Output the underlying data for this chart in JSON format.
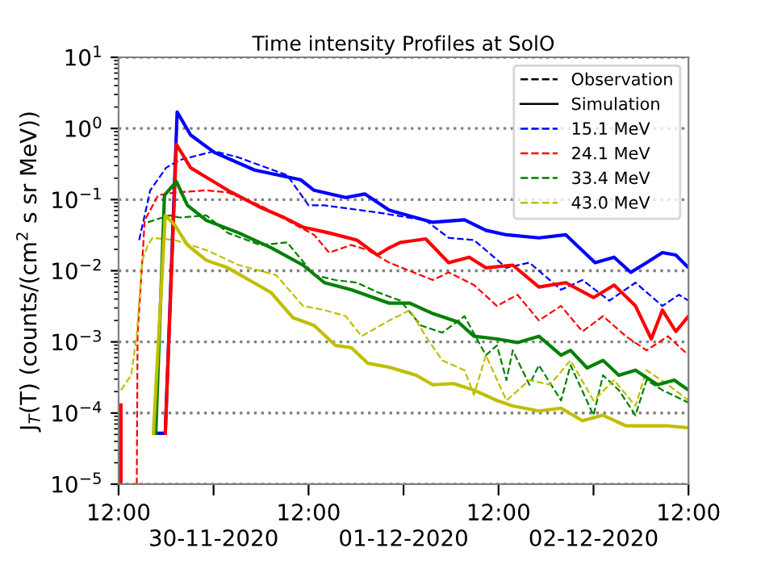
{
  "chart_data": {
    "type": "line",
    "title": "Time intensity Profiles at SolO",
    "ylabel": "J$_{T}$(T) (counts/(cm$^{2}$ s sr MeV))",
    "annotations": [
      "30-11-2020",
      "01-12-2020",
      "02-12-2020"
    ],
    "log": "y",
    "grid": "y",
    "legend": "top right",
    "xlim": [
      "2020-11-29T12:00",
      "2020-12-02T12:00"
    ],
    "ylim": [
      1e-05,
      10
    ],
    "xticks": [
      {
        "value": "2020-11-29T12:00",
        "label": "12:00"
      },
      {
        "value": "2020-11-30T00:00",
        "label": null
      },
      {
        "value": "2020-11-30T12:00",
        "label": "12:00"
      },
      {
        "value": "2020-12-01T00:00",
        "label": null
      },
      {
        "value": "2020-12-01T12:00",
        "label": "12:00"
      },
      {
        "value": "2020-12-02T00:00",
        "label": null
      },
      {
        "value": "2020-12-02T12:00",
        "label": "12:00"
      }
    ],
    "yticks": [
      {
        "value": 1e-05,
        "label": "10$^{−5}$"
      },
      {
        "value": 0.0001,
        "label": "10$^{−4}$"
      },
      {
        "value": 0.001,
        "label": "10$^{−3}$"
      },
      {
        "value": 0.01,
        "label": "10$^{−2}$"
      },
      {
        "value": 0.1,
        "label": "10$^{−1}$"
      },
      {
        "value": 1,
        "label": "10$^{0}$"
      },
      {
        "value": 10,
        "label": "10$^{1}$"
      }
    ],
    "series": [
      {
        "name": "Observation",
        "color": "#000000",
        "line_style": "dashed"
      },
      {
        "name": "Simulation",
        "color": "#000000",
        "line_style": "solid"
      },
      {
        "name": "15.1 MeV",
        "color": "#0000ff",
        "line_style": "dashed",
        "x": [
          "2020-11-29T14:36",
          "2020-11-29T16:00",
          "2020-11-29T18:00",
          "2020-11-29T19:42",
          "2020-11-30T00:06",
          "2020-11-30T03:12",
          "2020-11-30T09:18",
          "2020-11-30T12:00",
          "2020-11-30T14:00",
          "2020-11-30T20:42",
          "2020-12-01T02:48",
          "2020-12-01T05:42",
          "2020-12-01T08:54",
          "2020-12-01T13:00",
          "2020-12-01T15:54",
          "2020-12-01T19:54",
          "2020-12-01T22:36",
          "2020-12-02T02:00",
          "2020-12-02T05:18",
          "2020-12-02T08:42",
          "2020-12-02T10:48",
          "2020-12-02T12:00"
        ],
        "values": [
          0.027,
          0.135,
          0.28,
          0.36,
          0.48,
          0.39,
          0.22,
          0.083,
          0.083,
          0.066,
          0.051,
          0.029,
          0.027,
          0.011,
          0.013,
          0.0054,
          0.0074,
          0.0038,
          0.0068,
          0.0032,
          0.0046,
          0.0038
        ]
      },
      {
        "name": "24.1 MeV",
        "color": "#ff0000",
        "line_style": "dashed",
        "x": [
          "2020-11-29T14:18",
          "2020-11-29T14:24",
          "2020-11-29T15:00",
          "2020-11-29T15:18",
          "2020-11-29T17:00",
          "2020-11-29T19:06",
          "2020-11-29T23:06",
          "2020-11-30T01:48",
          "2020-11-30T05:54",
          "2020-11-30T09:18",
          "2020-11-30T12:42",
          "2020-11-30T14:36",
          "2020-11-30T17:24",
          "2020-11-30T19:30",
          "2020-11-30T22:12",
          "2020-12-01T03:42",
          "2020-12-01T05:42",
          "2020-12-01T08:54",
          "2020-12-01T11:48",
          "2020-12-01T14:24",
          "2020-12-01T17:06",
          "2020-12-01T19:54",
          "2020-12-01T22:36",
          "2020-12-02T01:12",
          "2020-12-02T04:06",
          "2020-12-02T06:42",
          "2020-12-02T09:24",
          "2020-12-02T12:00"
        ],
        "values": [
          1e-05,
          0.00126,
          0.014,
          0.051,
          0.115,
          0.126,
          0.135,
          0.126,
          0.083,
          0.051,
          0.032,
          0.018,
          0.023,
          0.0195,
          0.013,
          0.0074,
          0.0095,
          0.0063,
          0.0032,
          0.0046,
          0.002,
          0.0032,
          0.0014,
          0.0023,
          0.0012,
          0.00076,
          0.0012,
          0.00065
        ]
      },
      {
        "name": "33.4 MeV",
        "color": "#008000",
        "line_style": "dashed",
        "x": [
          "2020-11-29T15:42",
          "2020-11-29T18:24",
          "2020-11-29T19:42",
          "2020-11-29T23:06",
          "2020-11-30T01:48",
          "2020-11-30T05:54",
          "2020-11-30T09:18",
          "2020-11-30T12:42",
          "2020-11-30T15:24",
          "2020-11-30T18:06",
          "2020-11-30T20:42",
          "2020-11-30T23:36",
          "2020-12-01T02:12",
          "2020-12-01T04:54",
          "2020-12-01T07:42",
          "2020-12-01T10:24",
          "2020-12-01T11:48",
          "2020-12-01T13:00",
          "2020-12-01T13:48",
          "2020-12-01T15:54",
          "2020-12-01T17:06",
          "2020-12-01T19:54",
          "2020-12-01T21:06",
          "2020-12-02T00:00",
          "2020-12-02T01:12",
          "2020-12-02T03:12",
          "2020-12-02T05:18",
          "2020-12-02T06:42",
          "2020-12-02T08:42",
          "2020-12-02T12:00"
        ],
        "values": [
          0.048,
          0.06,
          0.056,
          0.06,
          0.034,
          0.023,
          0.025,
          0.0087,
          0.0074,
          0.0068,
          0.005,
          0.0038,
          0.0017,
          0.00135,
          0.0023,
          0.00065,
          0.00089,
          0.00029,
          0.00076,
          0.00025,
          0.00047,
          0.00015,
          0.00047,
          9.3e-05,
          0.00034,
          0.00021,
          9.3e-05,
          0.00029,
          0.00021,
          0.00014
        ]
      },
      {
        "name": "43.0 MeV",
        "color": "#bfbf00",
        "line_style": "dashed",
        "x": [
          "2020-11-29T12:18",
          "2020-11-29T13:36",
          "2020-11-29T14:18",
          "2020-11-29T15:00",
          "2020-11-29T15:42",
          "2020-11-29T16:18",
          "2020-11-29T19:06",
          "2020-11-29T23:06",
          "2020-11-30T03:12",
          "2020-11-30T07:54",
          "2020-11-30T11:18",
          "2020-11-30T14:00",
          "2020-11-30T16:42",
          "2020-11-30T18:42",
          "2020-11-30T22:12",
          "2020-12-01T00:48",
          "2020-12-01T02:48",
          "2020-12-01T04:54",
          "2020-12-01T07:42",
          "2020-12-01T08:54",
          "2020-12-01T10:24",
          "2020-12-01T13:00",
          "2020-12-01T15:54",
          "2020-12-01T18:30",
          "2020-12-01T21:06",
          "2020-12-02T00:00",
          "2020-12-02T02:36",
          "2020-12-02T05:18",
          "2020-12-02T06:42",
          "2020-12-02T09:24",
          "2020-12-02T12:00"
        ],
        "values": [
          0.00021,
          0.00034,
          0.00126,
          0.014,
          0.023,
          0.029,
          0.027,
          0.0195,
          0.012,
          0.0087,
          0.0032,
          0.0028,
          0.0023,
          0.0012,
          0.002,
          0.0028,
          0.0012,
          0.00055,
          0.0004,
          0.00018,
          0.00065,
          0.00015,
          0.00029,
          0.00025,
          0.00055,
          0.00015,
          0.00029,
          0.000126,
          0.0004,
          0.00025,
          0.00015
        ]
      },
      {
        "color": "#0000ff",
        "line_style": "solid",
        "x": [
          "2020-11-29T16:30",
          "2020-11-29T17:54",
          "2020-11-29T19:24",
          "2020-11-29T21:06",
          "2020-11-30T00:06",
          "2020-11-30T05:12",
          "2020-11-30T11:00",
          "2020-11-30T12:42",
          "2020-11-30T16:42",
          "2020-11-30T19:06",
          "2020-11-30T22:12",
          "2020-12-01T03:42",
          "2020-12-01T07:42",
          "2020-12-01T10:24",
          "2020-12-01T13:00",
          "2020-12-01T17:06",
          "2020-12-01T20:30",
          "2020-12-02T00:12",
          "2020-12-02T02:36",
          "2020-12-02T04:42",
          "2020-12-02T06:42",
          "2020-12-02T08:42",
          "2020-12-02T10:24",
          "2020-12-02T12:00"
        ],
        "values": [
          5.2e-05,
          5.2e-05,
          1.7,
          0.81,
          0.46,
          0.26,
          0.19,
          0.135,
          0.107,
          0.12,
          0.071,
          0.048,
          0.052,
          0.037,
          0.032,
          0.029,
          0.032,
          0.013,
          0.0155,
          0.0095,
          0.013,
          0.018,
          0.0166,
          0.011
        ]
      },
      {
        "color": "#ff0000",
        "line_style": "solid",
        "x": [
          "2020-11-29T12:18",
          "2020-11-29T12:18",
          "2020-11-29T15:00",
          "2020-11-29T17:54",
          "2020-11-29T19:18",
          "2020-11-29T21:06",
          "2020-11-30T01:48",
          "2020-11-30T05:54",
          "2020-11-30T08:54",
          "2020-11-30T11:18",
          "2020-11-30T14:36",
          "2020-11-30T18:06",
          "2020-11-30T20:42",
          "2020-11-30T22:12",
          "2020-11-30T23:36",
          "2020-12-01T02:48",
          "2020-12-01T05:42",
          "2020-12-01T08:18",
          "2020-12-01T10:24",
          "2020-12-01T13:48",
          "2020-12-01T17:06",
          "2020-12-01T20:30",
          "2020-12-02T00:00",
          "2020-12-02T02:36",
          "2020-12-02T05:18",
          "2020-12-02T07:18",
          "2020-12-02T08:42",
          "2020-12-02T10:24",
          "2020-12-02T12:00"
        ],
        "values": [
          1e-05,
          0.00013,
          null,
          5.2e-05,
          0.6,
          0.28,
          0.135,
          0.078,
          0.056,
          0.041,
          0.034,
          0.027,
          0.0166,
          0.021,
          0.025,
          0.028,
          0.013,
          0.0155,
          0.011,
          0.012,
          0.0059,
          0.0068,
          0.0042,
          0.0063,
          0.0032,
          0.0011,
          0.0028,
          0.0014,
          0.0023
        ]
      },
      {
        "color": "#008000",
        "line_style": "solid",
        "x": [
          "2020-11-29T16:42",
          "2020-11-29T17:48",
          "2020-11-29T19:18",
          "2020-11-29T20:42",
          "2020-11-29T23:06",
          "2020-11-30T03:12",
          "2020-11-30T07:18",
          "2020-11-30T11:18",
          "2020-11-30T14:00",
          "2020-11-30T17:24",
          "2020-11-30T22:12",
          "2020-12-01T00:48",
          "2020-12-01T03:42",
          "2020-12-01T06:54",
          "2020-12-01T08:54",
          "2020-12-01T11:48",
          "2020-12-01T14:24",
          "2020-12-01T17:06",
          "2020-12-01T19:54",
          "2020-12-01T21:06",
          "2020-12-01T23:12",
          "2020-12-02T01:12",
          "2020-12-02T03:12",
          "2020-12-02T05:18",
          "2020-12-02T08:06",
          "2020-12-02T10:12",
          "2020-12-02T12:00"
        ],
        "values": [
          5.2e-05,
          0.115,
          0.18,
          0.083,
          0.051,
          0.034,
          0.021,
          0.012,
          0.0068,
          0.0054,
          0.0035,
          0.0035,
          0.0025,
          0.0019,
          0.0012,
          0.0011,
          0.00098,
          0.0012,
          0.00065,
          0.00076,
          0.00043,
          0.00055,
          0.00034,
          0.0004,
          0.00025,
          0.00029,
          0.00021
        ]
      },
      {
        "color": "#bfbf00",
        "line_style": "solid",
        "x": [
          "2020-11-29T16:24",
          "2020-11-29T17:54",
          "2020-11-29T19:06",
          "2020-11-29T20:42",
          "2020-11-29T23:06",
          "2020-11-30T01:48",
          "2020-11-30T04:30",
          "2020-11-30T07:18",
          "2020-11-30T10:00",
          "2020-11-30T12:42",
          "2020-11-30T15:24",
          "2020-11-30T17:24",
          "2020-11-30T19:30",
          "2020-11-30T22:12",
          "2020-12-01T01:36",
          "2020-12-01T03:42",
          "2020-12-01T06:18",
          "2020-12-01T08:54",
          "2020-12-01T11:48",
          "2020-12-01T13:48",
          "2020-12-01T17:06",
          "2020-12-01T19:54",
          "2020-12-01T22:36",
          "2020-12-02T01:12",
          "2020-12-02T04:06",
          "2020-12-02T06:42",
          "2020-12-02T09:24",
          "2020-12-02T12:00"
        ],
        "values": [
          5.2e-05,
          0.06,
          0.044,
          0.023,
          0.014,
          0.011,
          0.0074,
          0.0049,
          0.0022,
          0.0017,
          0.00089,
          0.00083,
          0.0005,
          0.00044,
          0.00034,
          0.00025,
          0.00026,
          0.00021,
          0.00015,
          0.000126,
          0.000107,
          0.000117,
          7.8e-05,
          9.3e-05,
          6.6e-05,
          6.6e-05,
          6.6e-05,
          6.2e-05
        ]
      }
    ]
  }
}
